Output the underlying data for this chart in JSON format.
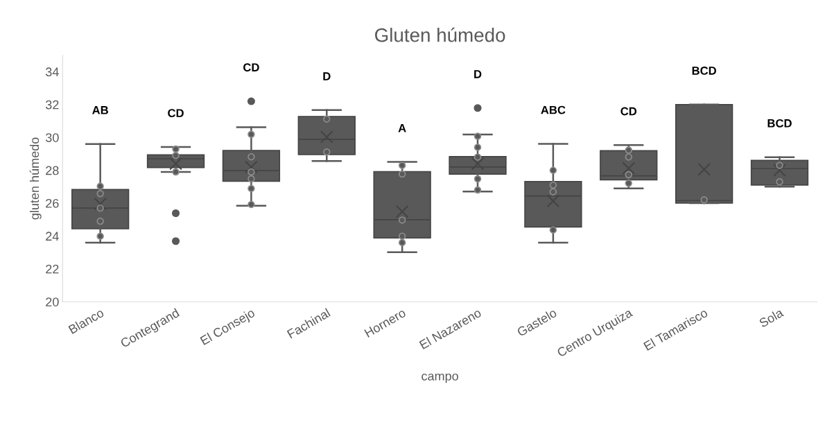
{
  "chart_data": {
    "type": "box",
    "title": "Gluten húmedo",
    "xlabel": "campo",
    "ylabel": "gluten húmedo",
    "categories": [
      "Blanco",
      "Contegrand",
      "El Consejo",
      "Fachinal",
      "Hornero",
      "El Nazareno",
      "Gastelo",
      "Centro Urquiza",
      "El Tamarisco",
      "Sola"
    ],
    "ylim": [
      20,
      35
    ],
    "yticks": [
      20,
      22,
      24,
      26,
      28,
      30,
      32,
      34
    ],
    "grid": false,
    "legend": false,
    "series": [
      {
        "color": "#595959",
        "boxes": [
          {
            "low": 23.6,
            "q1": 24.44,
            "median": 25.7,
            "q3": 26.83,
            "high": 29.6,
            "mean": 25.95
          },
          {
            "low": 27.9,
            "q1": 28.17,
            "median": 28.7,
            "q3": 28.94,
            "high": 29.42,
            "mean": 28.4,
            "outliers": [
              25.39,
              23.69
            ]
          },
          {
            "low": 25.84,
            "q1": 27.33,
            "median": 27.98,
            "q3": 29.2,
            "high": 30.62,
            "mean": 28.19,
            "outliers": [
              32.2
            ]
          },
          {
            "low": 28.56,
            "q1": 28.96,
            "median": 29.89,
            "q3": 31.27,
            "high": 31.66,
            "mean": 30.03
          },
          {
            "low": 23.02,
            "q1": 23.88,
            "median": 24.99,
            "q3": 27.92,
            "high": 28.51,
            "mean": 25.49
          },
          {
            "low": 26.71,
            "q1": 27.77,
            "median": 28.2,
            "q3": 28.83,
            "high": 30.18,
            "mean": 28.4,
            "outliers": [
              31.79
            ]
          },
          {
            "low": 23.6,
            "q1": 24.55,
            "median": 26.44,
            "q3": 27.32,
            "high": 29.61,
            "mean": 26.13
          },
          {
            "low": 26.9,
            "q1": 27.42,
            "median": 27.66,
            "q3": 29.19,
            "high": 29.53,
            "mean": 28.12
          },
          {
            "low": 26.0,
            "q1": 26.0,
            "median": 26.16,
            "q3": 32.0,
            "high": 32.0,
            "mean": 28.05
          },
          {
            "low": 27.0,
            "q1": 27.1,
            "median": 28.1,
            "q3": 28.6,
            "high": 28.8,
            "mean": 28.0
          }
        ]
      },
      {
        "type": "scatter",
        "color": "#595959",
        "marker": "circle",
        "x": [
          "Blanco",
          "Blanco",
          "Blanco",
          "Blanco",
          "Blanco",
          "Contegrand",
          "Contegrand",
          "Contegrand",
          "Contegrand",
          "El Consejo",
          "El Consejo",
          "El Consejo",
          "El Consejo",
          "El Consejo",
          "El Consejo",
          "Fachinal",
          "Fachinal",
          "Hornero",
          "Hornero",
          "Hornero",
          "Hornero",
          "Hornero",
          "El Nazareno",
          "El Nazareno",
          "El Nazareno",
          "El Nazareno",
          "El Nazareno",
          "Gastelo",
          "Gastelo",
          "Gastelo",
          "Gastelo",
          "Centro Urquiza",
          "Centro Urquiza",
          "Centro Urquiza",
          "Centro Urquiza",
          "El Tamarisco",
          "Sola",
          "Sola"
        ],
        "values": [
          27.03,
          26.58,
          25.7,
          24.9,
          23.99,
          29.29,
          28.9,
          null,
          27.9,
          30.19,
          28.82,
          27.9,
          27.48,
          26.89,
          25.92,
          31.12,
          29.11,
          28.3,
          27.77,
          24.97,
          23.99,
          23.6,
          30.07,
          29.4,
          28.81,
          27.48,
          26.8,
          28.0,
          27.1,
          26.69,
          24.37,
          29.23,
          28.81,
          27.73,
          27.21,
          26.2,
          28.3,
          27.3
        ]
      }
    ],
    "annotations": [
      "AB",
      "CD",
      "CD",
      "D",
      "A",
      "D",
      "ABC",
      "CD",
      "BCD",
      "BCD"
    ]
  }
}
